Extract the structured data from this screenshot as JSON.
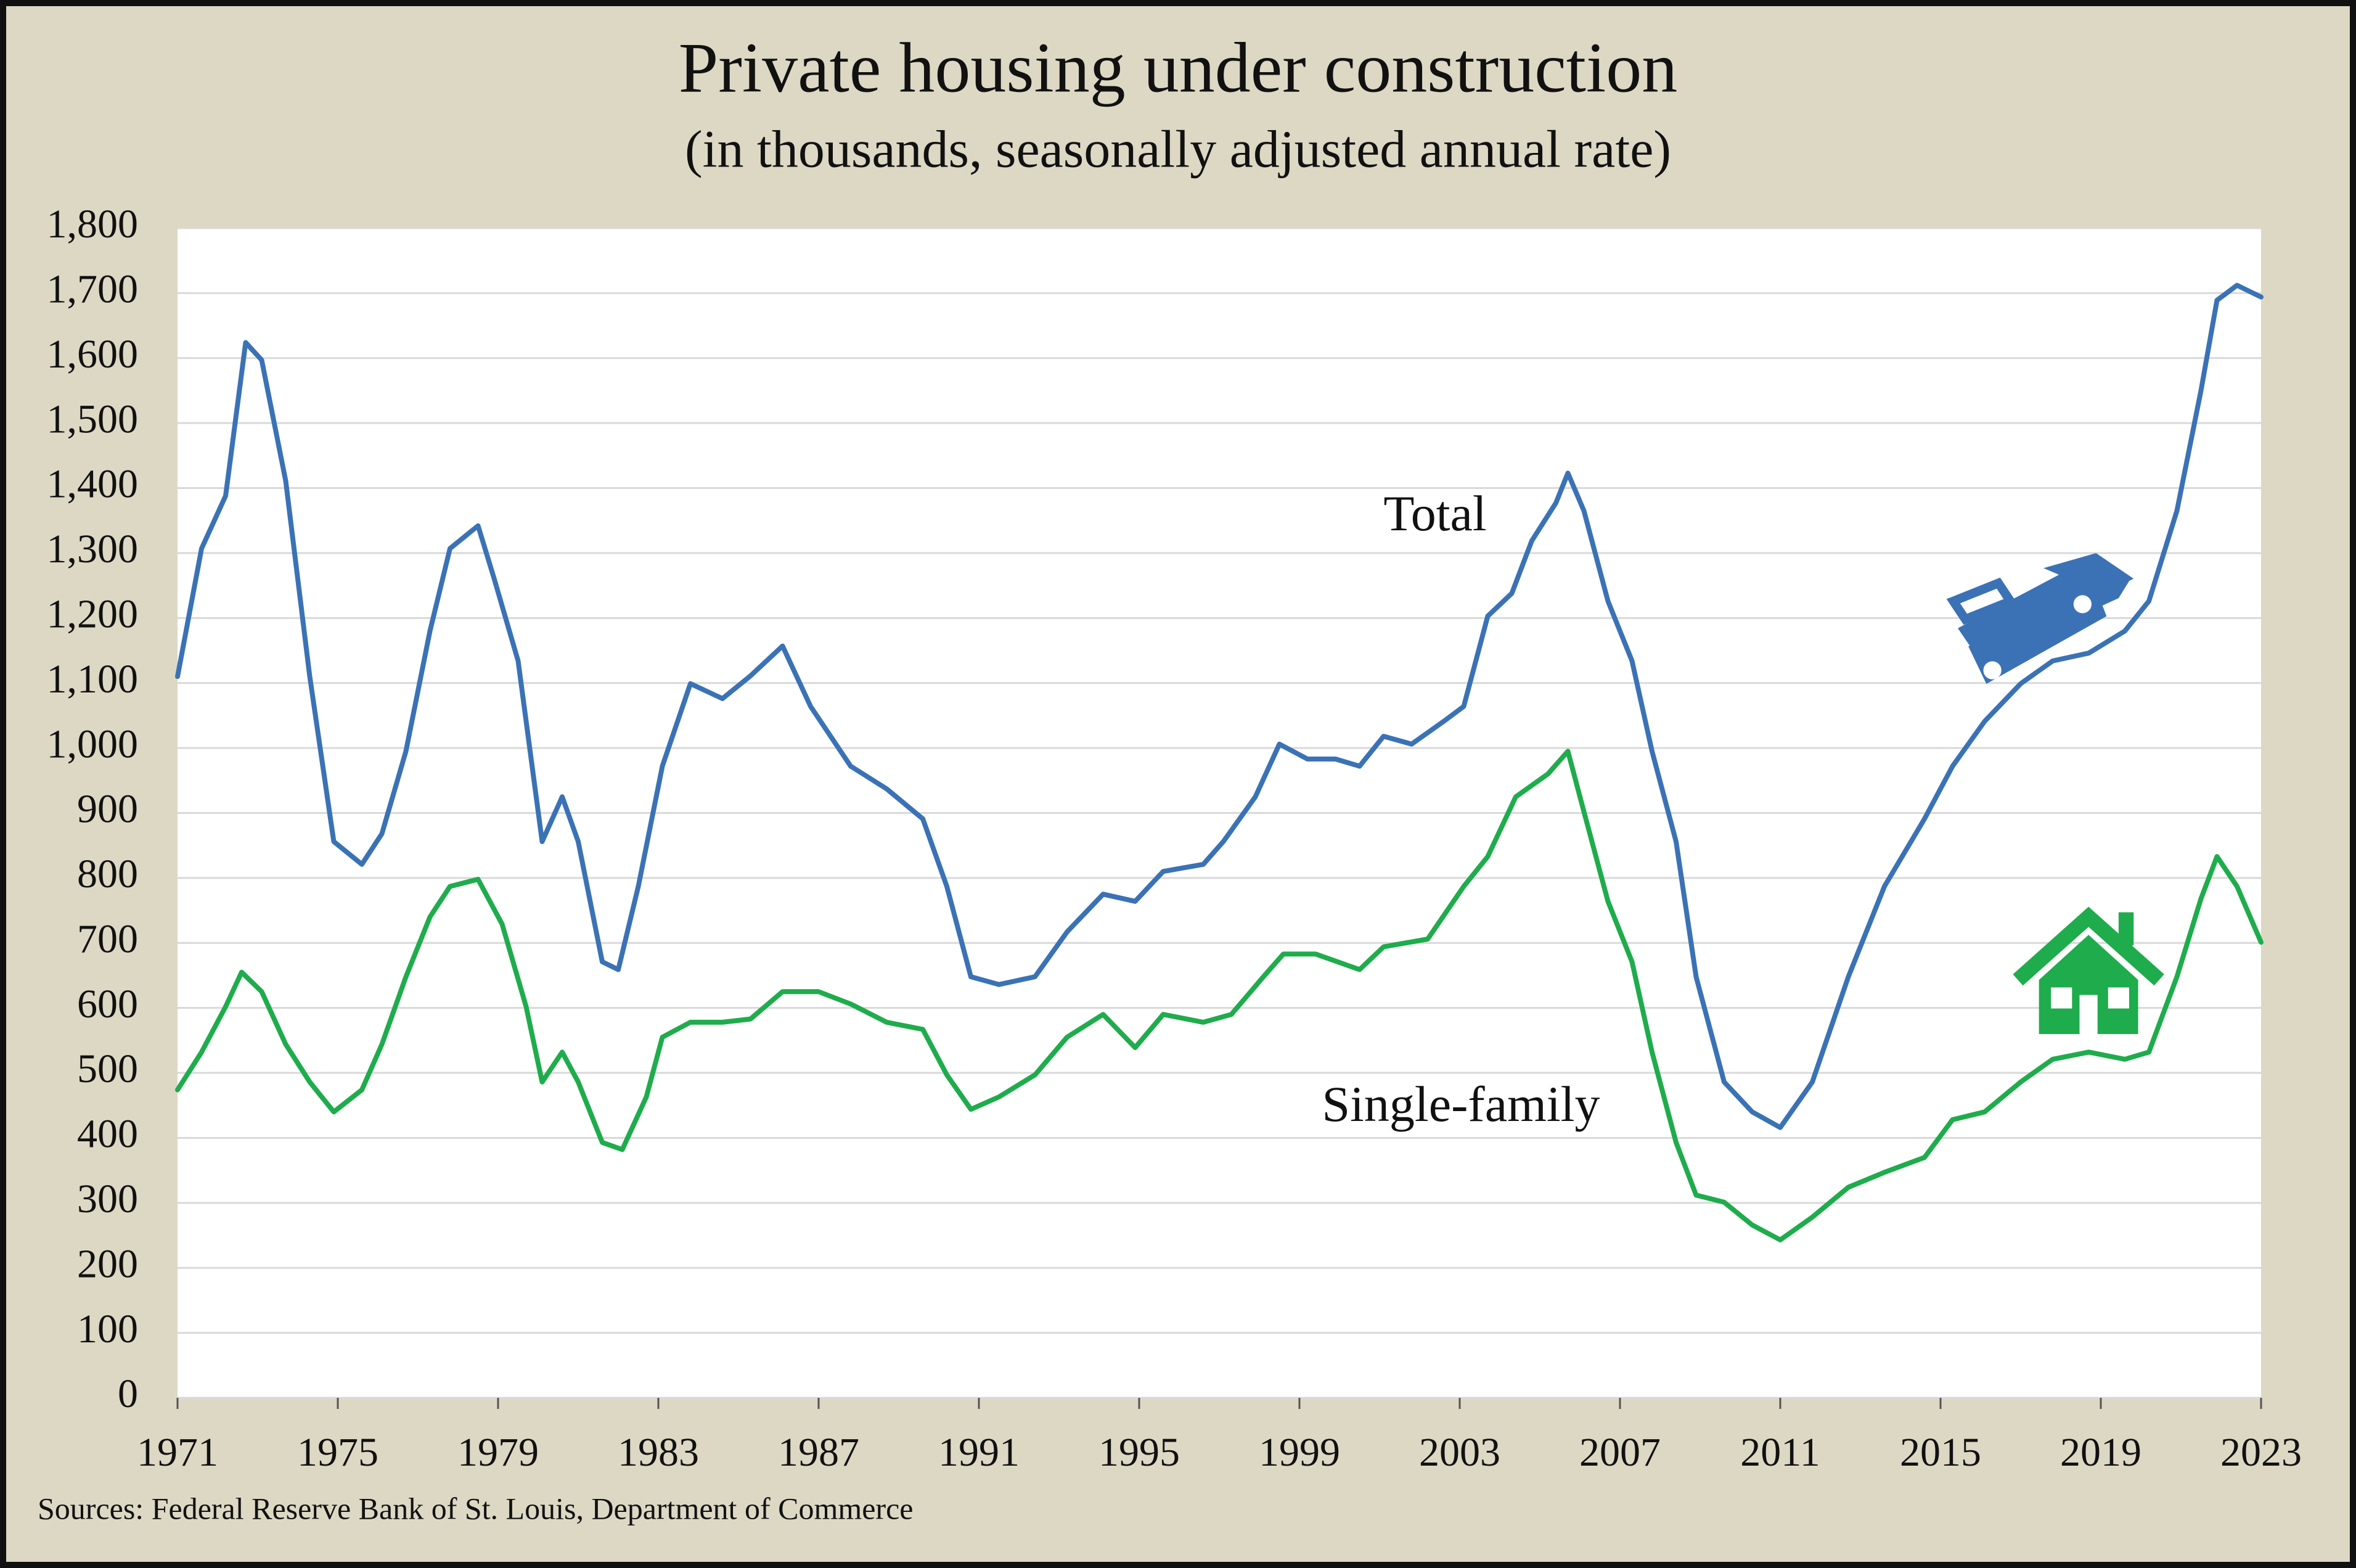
{
  "chart_data": {
    "type": "line",
    "title": "Private housing under construction",
    "subtitle": "(in thousands, seasonally adjusted annual rate)",
    "source": "Sources: Federal Reserve Bank of St. Louis, Department of Commerce",
    "annotations": [
      "Total",
      "Single-family"
    ],
    "xlim": [
      1971,
      2023
    ],
    "xticks": [
      1971,
      1975,
      1979,
      1983,
      1987,
      1991,
      1995,
      1999,
      2003,
      2007,
      2011,
      2015,
      2019,
      2023
    ],
    "ylim": [
      0,
      1800
    ],
    "yticks": [
      0,
      100,
      200,
      300,
      400,
      500,
      600,
      700,
      800,
      900,
      {
        "value": 1000,
        "label": "1,000"
      },
      {
        "value": 1100,
        "label": "1,100"
      },
      {
        "value": 1200,
        "label": "1,200"
      },
      {
        "value": 1300,
        "label": "1,300"
      },
      {
        "value": 1400,
        "label": "1,400"
      },
      {
        "value": 1500,
        "label": "1,500"
      },
      {
        "value": 1600,
        "label": "1,600"
      },
      {
        "value": 1700,
        "label": "1,700"
      },
      {
        "value": 1800,
        "label": "1,800"
      }
    ],
    "grid": true,
    "series": [
      {
        "name": "Total",
        "color": "#3a72b5",
        "x": [
          1971.0,
          1971.6,
          1972.2,
          1972.7,
          1973.1,
          1973.7,
          1974.3,
          1974.9,
          1975.6,
          1976.1,
          1976.7,
          1977.3,
          1977.8,
          1978.5,
          1978.9,
          1979.5,
          1980.1,
          1980.6,
          1981.0,
          1981.6,
          1982.0,
          1982.5,
          1983.1,
          1983.8,
          1984.6,
          1985.3,
          1986.1,
          1986.8,
          1987.8,
          1988.7,
          1989.6,
          1990.2,
          1990.8,
          1991.5,
          1992.4,
          1993.2,
          1994.1,
          1994.9,
          1995.6,
          1996.6,
          1997.1,
          1997.9,
          1998.5,
          1999.2,
          1999.9,
          2000.5,
          2001.1,
          2001.8,
          2002.6,
          2003.1,
          2003.7,
          2004.3,
          2004.8,
          2005.4,
          2005.7,
          2006.1,
          2006.7,
          2007.3,
          2007.8,
          2008.4,
          2008.9,
          2009.6,
          2010.3,
          2011.0,
          2011.8,
          2012.7,
          2013.6,
          2014.6,
          2015.3,
          2016.1,
          2017.0,
          2017.8,
          2018.7,
          2019.6,
          2020.2,
          2020.9,
          2021.5,
          2021.9,
          2022.4,
          2023.0
        ],
        "values": [
          1110,
          1307,
          1388,
          1624,
          1597,
          1411,
          1110,
          856,
          821,
          868,
          995,
          1180,
          1307,
          1342,
          1261,
          1134,
          856,
          925,
          856,
          671,
          659,
          787,
          972,
          1099,
          1076,
          1111,
          1157,
          1064,
          972,
          937,
          891,
          787,
          648,
          636,
          648,
          717,
          775,
          764,
          810,
          821,
          856,
          925,
          1006,
          983,
          983,
          972,
          1018,
          1006,
          1041,
          1064,
          1203,
          1238,
          1319,
          1377,
          1423,
          1365,
          1226,
          1134,
          995,
          856,
          648,
          486,
          440,
          416,
          486,
          648,
          787,
          891,
          972,
          1041,
          1099,
          1134,
          1146,
          1180,
          1226,
          1365,
          1550,
          1689,
          1712,
          1694
        ]
      },
      {
        "name": "Single-family",
        "color": "#1fac4c",
        "x": [
          1971.0,
          1971.6,
          1972.2,
          1972.6,
          1973.1,
          1973.7,
          1974.3,
          1974.9,
          1975.6,
          1976.1,
          1976.7,
          1977.3,
          1977.8,
          1978.5,
          1979.1,
          1979.7,
          1980.1,
          1980.6,
          1981.0,
          1981.6,
          1982.1,
          1982.7,
          1983.1,
          1983.8,
          1984.6,
          1985.3,
          1986.1,
          1987.0,
          1987.8,
          1988.7,
          1989.6,
          1990.2,
          1990.8,
          1991.5,
          1992.4,
          1993.2,
          1994.1,
          1994.9,
          1995.6,
          1996.6,
          1997.3,
          1998.1,
          1998.6,
          1999.4,
          2000.5,
          2001.1,
          2002.2,
          2003.1,
          2003.7,
          2004.4,
          2005.2,
          2005.7,
          2006.1,
          2006.7,
          2007.3,
          2007.8,
          2008.4,
          2008.9,
          2009.6,
          2010.3,
          2011.0,
          2011.8,
          2012.7,
          2013.6,
          2014.6,
          2015.3,
          2016.1,
          2017.0,
          2017.8,
          2018.7,
          2019.6,
          2020.2,
          2020.9,
          2021.5,
          2021.9,
          2022.4,
          2023.0
        ],
        "values": [
          474,
          532,
          602,
          655,
          625,
          544,
          486,
          440,
          474,
          544,
          648,
          740,
          787,
          798,
          729,
          602,
          486,
          532,
          486,
          393,
          382,
          463,
          555,
          578,
          578,
          583,
          625,
          625,
          606,
          578,
          567,
          497,
          444,
          463,
          497,
          555,
          590,
          539,
          590,
          578,
          590,
          648,
          683,
          683,
          659,
          694,
          706,
          787,
          833,
          925,
          960,
          995,
          902,
          764,
          671,
          532,
          393,
          312,
          301,
          266,
          243,
          278,
          324,
          347,
          370,
          428,
          440,
          486,
          521,
          532,
          521,
          532,
          648,
          768,
          833,
          787,
          701
        ]
      }
    ]
  }
}
